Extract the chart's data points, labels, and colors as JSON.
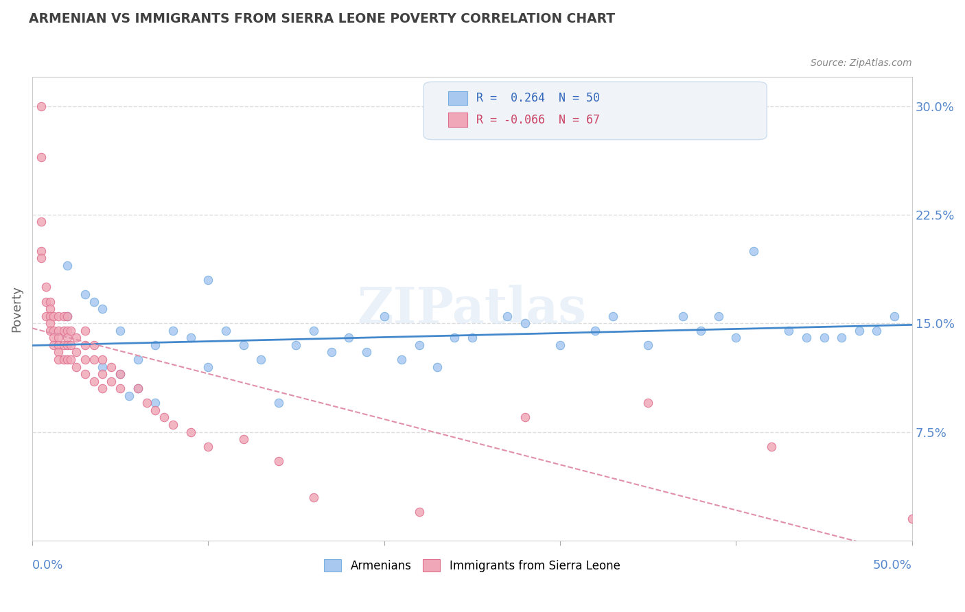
{
  "title": "ARMENIAN VS IMMIGRANTS FROM SIERRA LEONE POVERTY CORRELATION CHART",
  "source": "Source: ZipAtlas.com",
  "ylabel": "Poverty",
  "yticks": [
    0.075,
    0.15,
    0.225,
    0.3
  ],
  "ytick_labels": [
    "7.5%",
    "15.0%",
    "22.5%",
    "30.0%"
  ],
  "xlim": [
    0.0,
    0.5
  ],
  "ylim": [
    0.0,
    0.32
  ],
  "armenian_color": "#a8c8f0",
  "armenian_edge": "#7ab0e0",
  "sierra_leone_color": "#f0a8b8",
  "sierra_leone_edge": "#e07090",
  "trend_armenian_color": "#4488cc",
  "trend_sierra_leone_color": "#e090a8",
  "R_armenian": 0.264,
  "N_armenian": 50,
  "R_sierra_leone": -0.066,
  "N_sierra_leone": 67,
  "armenian_x": [
    0.02,
    0.02,
    0.03,
    0.035,
    0.04,
    0.04,
    0.05,
    0.05,
    0.055,
    0.06,
    0.06,
    0.07,
    0.07,
    0.08,
    0.09,
    0.1,
    0.1,
    0.11,
    0.12,
    0.13,
    0.14,
    0.15,
    0.16,
    0.17,
    0.18,
    0.19,
    0.2,
    0.21,
    0.22,
    0.23,
    0.24,
    0.25,
    0.27,
    0.28,
    0.3,
    0.32,
    0.33,
    0.35,
    0.37,
    0.38,
    0.39,
    0.4,
    0.41,
    0.43,
    0.44,
    0.45,
    0.46,
    0.47,
    0.48,
    0.49
  ],
  "armenian_y": [
    0.19,
    0.155,
    0.17,
    0.165,
    0.16,
    0.12,
    0.145,
    0.115,
    0.1,
    0.125,
    0.105,
    0.135,
    0.095,
    0.145,
    0.14,
    0.18,
    0.12,
    0.145,
    0.135,
    0.125,
    0.095,
    0.135,
    0.145,
    0.13,
    0.14,
    0.13,
    0.155,
    0.125,
    0.135,
    0.12,
    0.14,
    0.14,
    0.155,
    0.15,
    0.135,
    0.145,
    0.155,
    0.135,
    0.155,
    0.145,
    0.155,
    0.14,
    0.2,
    0.145,
    0.14,
    0.14,
    0.14,
    0.145,
    0.145,
    0.155
  ],
  "sierra_leone_x": [
    0.005,
    0.005,
    0.005,
    0.005,
    0.005,
    0.008,
    0.008,
    0.008,
    0.01,
    0.01,
    0.01,
    0.01,
    0.01,
    0.012,
    0.012,
    0.012,
    0.012,
    0.015,
    0.015,
    0.015,
    0.015,
    0.015,
    0.015,
    0.018,
    0.018,
    0.018,
    0.018,
    0.02,
    0.02,
    0.02,
    0.02,
    0.02,
    0.022,
    0.022,
    0.022,
    0.025,
    0.025,
    0.025,
    0.03,
    0.03,
    0.03,
    0.03,
    0.035,
    0.035,
    0.035,
    0.04,
    0.04,
    0.04,
    0.045,
    0.045,
    0.05,
    0.05,
    0.06,
    0.065,
    0.07,
    0.075,
    0.08,
    0.09,
    0.1,
    0.12,
    0.14,
    0.16,
    0.22,
    0.28,
    0.35,
    0.42,
    0.5
  ],
  "sierra_leone_y": [
    0.3,
    0.265,
    0.22,
    0.2,
    0.195,
    0.175,
    0.165,
    0.155,
    0.165,
    0.16,
    0.155,
    0.15,
    0.145,
    0.155,
    0.145,
    0.14,
    0.135,
    0.155,
    0.145,
    0.14,
    0.135,
    0.13,
    0.125,
    0.155,
    0.145,
    0.135,
    0.125,
    0.155,
    0.145,
    0.14,
    0.135,
    0.125,
    0.145,
    0.135,
    0.125,
    0.14,
    0.13,
    0.12,
    0.145,
    0.135,
    0.125,
    0.115,
    0.135,
    0.125,
    0.11,
    0.125,
    0.115,
    0.105,
    0.12,
    0.11,
    0.115,
    0.105,
    0.105,
    0.095,
    0.09,
    0.085,
    0.08,
    0.075,
    0.065,
    0.07,
    0.055,
    0.03,
    0.02,
    0.085,
    0.095,
    0.065,
    0.015
  ],
  "watermark": "ZIPatlas",
  "background_color": "#ffffff",
  "grid_color": "#dddddd",
  "title_color": "#404040",
  "axis_label_color": "#5588cc",
  "legend_box_color": "#f0f4f8",
  "legend_box_edge": "#ccddee"
}
